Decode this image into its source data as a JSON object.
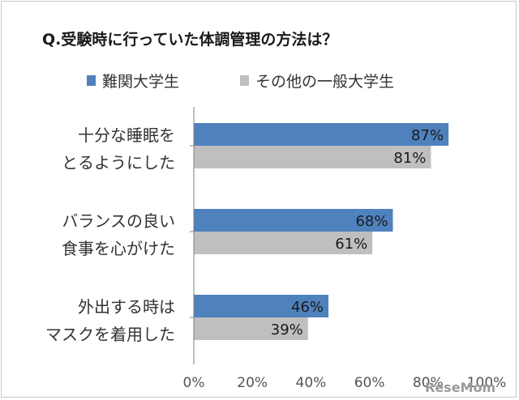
{
  "chart_data": {
    "type": "bar",
    "orientation": "horizontal",
    "title": "Q.受験時に行っていた体調管理の方法は？",
    "categories": [
      [
        "十分な睡眠を",
        "とるようにした"
      ],
      [
        "バランスの良い",
        "食事を心がけた"
      ],
      [
        "外出する時は",
        "マスクを着用した"
      ]
    ],
    "series": [
      {
        "name": "難関大学生",
        "values": [
          87,
          68,
          46
        ],
        "color": "#4f81bd",
        "labels": [
          "87%",
          "68%",
          "46%"
        ]
      },
      {
        "name": "その他の一般大学生",
        "values": [
          81,
          61,
          39
        ],
        "color": "#bfbfbf",
        "labels": [
          "81%",
          "61%",
          "39%"
        ]
      }
    ],
    "xlim": [
      0,
      100
    ],
    "xticks": [
      "0%",
      "20%",
      "40%",
      "60%",
      "80%",
      "100%"
    ],
    "xlabel": "",
    "ylabel": "",
    "legend_position": "top",
    "grid": false
  },
  "watermark": "ReseMom"
}
